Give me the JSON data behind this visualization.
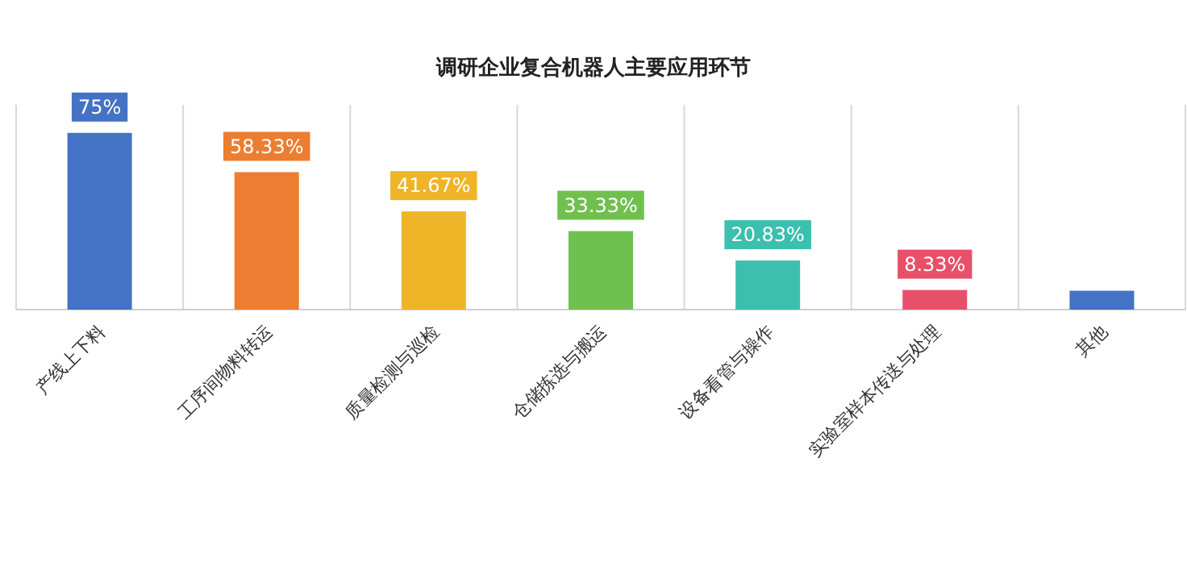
{
  "chart_data": {
    "type": "bar",
    "title": "调研企业复合机器人主要应用环节",
    "categories": [
      "产线上下料",
      "工序间物料转运",
      "质量检测与巡检",
      "仓储拣选与搬运",
      "设备看管与操作",
      "实验室样本传送与处理",
      "其他"
    ],
    "values": [
      75,
      58.33,
      41.67,
      33.33,
      20.83,
      8.33,
      8
    ],
    "value_labels": [
      "75%",
      "58.33%",
      "41.67%",
      "33.33%",
      "20.83%",
      "8.33%",
      null
    ],
    "colors": [
      "#4472c4",
      "#ed7d31",
      "#f0b429",
      "#70c050",
      "#3cbfae",
      "#e8506a",
      "#4472c4"
    ],
    "grid": "x"
  }
}
